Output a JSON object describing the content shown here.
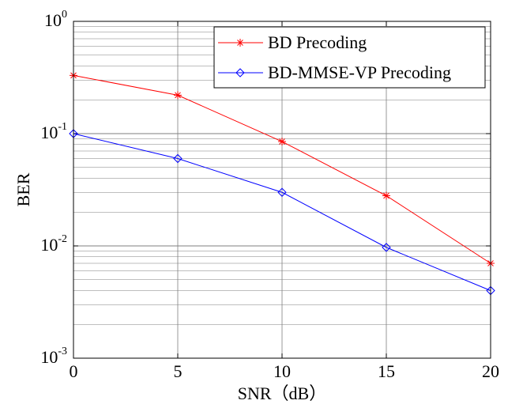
{
  "chart_data": {
    "type": "line",
    "x_axis": {
      "label": "SNR（dB）",
      "range": [
        0,
        20
      ],
      "ticks": [
        0,
        5,
        10,
        15,
        20
      ],
      "tick_labels": [
        "0",
        "5",
        "10",
        "15",
        "20"
      ],
      "scale": "linear"
    },
    "y_axis": {
      "label": "BER",
      "range": [
        0.001,
        1
      ],
      "scale": "log",
      "ticks": [
        {
          "value": 1,
          "base": "10",
          "exponent": "0"
        },
        {
          "value": 0.1,
          "base": "10",
          "exponent": "-1"
        },
        {
          "value": 0.01,
          "base": "10",
          "exponent": "-2"
        },
        {
          "value": 0.001,
          "base": "10",
          "exponent": "-3"
        }
      ]
    },
    "grid": true,
    "legend_position": "top-right",
    "series": [
      {
        "name": "BD Precoding",
        "color": "#ff0000",
        "marker": "star",
        "x": [
          0,
          5,
          10,
          15,
          20
        ],
        "y": [
          0.33,
          0.22,
          0.085,
          0.028,
          0.007
        ]
      },
      {
        "name": "BD-MMSE-VP Precoding",
        "color": "#0000ff",
        "marker": "diamond",
        "x": [
          0,
          5,
          10,
          15,
          20
        ],
        "y": [
          0.1,
          0.06,
          0.03,
          0.0097,
          0.004
        ]
      }
    ]
  }
}
